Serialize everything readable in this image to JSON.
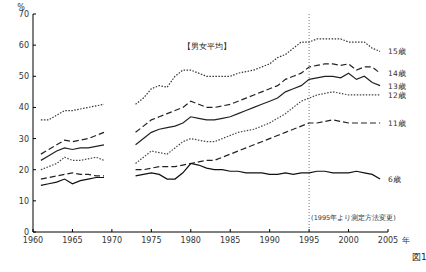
{
  "chart_data": {
    "type": "line",
    "title": "【男女平均】",
    "xlabel": "年",
    "ylabel": "%",
    "figure_label": "図1",
    "x": [
      1961,
      1962,
      1963,
      1964,
      1965,
      1966,
      1967,
      1968,
      1969,
      1970,
      1971,
      1972,
      1973,
      1974,
      1975,
      1976,
      1977,
      1978,
      1979,
      1980,
      1981,
      1982,
      1983,
      1984,
      1985,
      1986,
      1987,
      1988,
      1989,
      1990,
      1991,
      1992,
      1993,
      1994,
      1995,
      1996,
      1997,
      1998,
      1999,
      2000,
      2001,
      2002,
      2003,
      2004
    ],
    "series": [
      {
        "name": "15歳",
        "color": "#333333",
        "line_style": "dotted",
        "values": [
          36,
          36,
          37.5,
          39,
          39,
          39.5,
          40,
          40.5,
          41,
          null,
          null,
          null,
          41,
          43,
          46,
          47,
          46.5,
          50,
          52,
          52,
          51,
          50,
          50,
          50,
          50,
          51,
          51.5,
          52,
          53,
          54,
          56,
          57,
          59,
          61,
          61,
          62,
          62,
          62,
          62,
          61,
          61,
          61,
          59,
          58
        ]
      },
      {
        "name": "14歳",
        "color": "#222222",
        "line_style": "dashed",
        "values": [
          25,
          26.5,
          28,
          29.5,
          29,
          29.5,
          30,
          31,
          32,
          null,
          null,
          null,
          32,
          34,
          36,
          37,
          38,
          39,
          40,
          42,
          41,
          40,
          40,
          40.5,
          41,
          42,
          43,
          44,
          45,
          46,
          47,
          49,
          50,
          51,
          53,
          53.5,
          54,
          54,
          53.5,
          54,
          52,
          53,
          53,
          51
        ]
      },
      {
        "name": "13歳",
        "color": "#222222",
        "line_style": "solid",
        "values": [
          23,
          24.5,
          26,
          27,
          26.5,
          27,
          27,
          27.5,
          28,
          null,
          null,
          null,
          28,
          30,
          32,
          33,
          33.5,
          34,
          35,
          37,
          36.5,
          36,
          36,
          36.5,
          37,
          38,
          39,
          40,
          41,
          42,
          43,
          45,
          46,
          47,
          49,
          49.5,
          50,
          50,
          49.5,
          51,
          49,
          50,
          48,
          47
        ]
      },
      {
        "name": "12歳",
        "color": "#444444",
        "line_style": "dotted",
        "values": [
          20,
          21,
          22,
          24,
          23,
          23,
          23.5,
          24,
          23,
          null,
          null,
          null,
          22,
          24,
          26,
          25.5,
          25,
          27,
          29,
          30,
          29.5,
          29,
          29,
          30,
          31,
          32,
          32.5,
          33,
          34,
          35,
          36.5,
          38,
          40,
          42,
          43,
          44,
          44.5,
          45,
          44.5,
          44,
          44,
          44,
          44,
          44
        ]
      },
      {
        "name": "11歳",
        "color": "#222222",
        "line_style": "dashed",
        "values": [
          17,
          17.5,
          18,
          18.5,
          19,
          18.5,
          18.5,
          18,
          18,
          null,
          null,
          null,
          20,
          20,
          20.5,
          21,
          21,
          21,
          21.5,
          22,
          22.5,
          23,
          23,
          24,
          25,
          26,
          27,
          28,
          29,
          30,
          31,
          32,
          33,
          34,
          35,
          35,
          35.5,
          36,
          35.5,
          35,
          35,
          35,
          35,
          35
        ]
      },
      {
        "name": "6歳",
        "color": "#111111",
        "line_style": "solid",
        "values": [
          15,
          15.5,
          16,
          17,
          15.5,
          16.5,
          17,
          17.5,
          17.5,
          null,
          null,
          null,
          18,
          18.5,
          19,
          18.5,
          17,
          17,
          19,
          22,
          21.5,
          20.5,
          20,
          20,
          19.5,
          19.5,
          19,
          19,
          19,
          18.5,
          18.5,
          19,
          18.5,
          19,
          19,
          19.5,
          19.5,
          19,
          19,
          19,
          19.5,
          19,
          18.5,
          17
        ]
      }
    ],
    "xlim": [
      1960,
      2005
    ],
    "xticks": [
      1960,
      1965,
      1970,
      1975,
      1980,
      1985,
      1990,
      1995,
      2000,
      2005
    ],
    "ylim": [
      0,
      70
    ],
    "yticks": [
      0,
      10,
      20,
      30,
      40,
      50,
      60,
      70
    ],
    "grid": false,
    "annotations": [
      {
        "text": "(1995年より測定方法変更)",
        "x": 1995
      }
    ]
  }
}
